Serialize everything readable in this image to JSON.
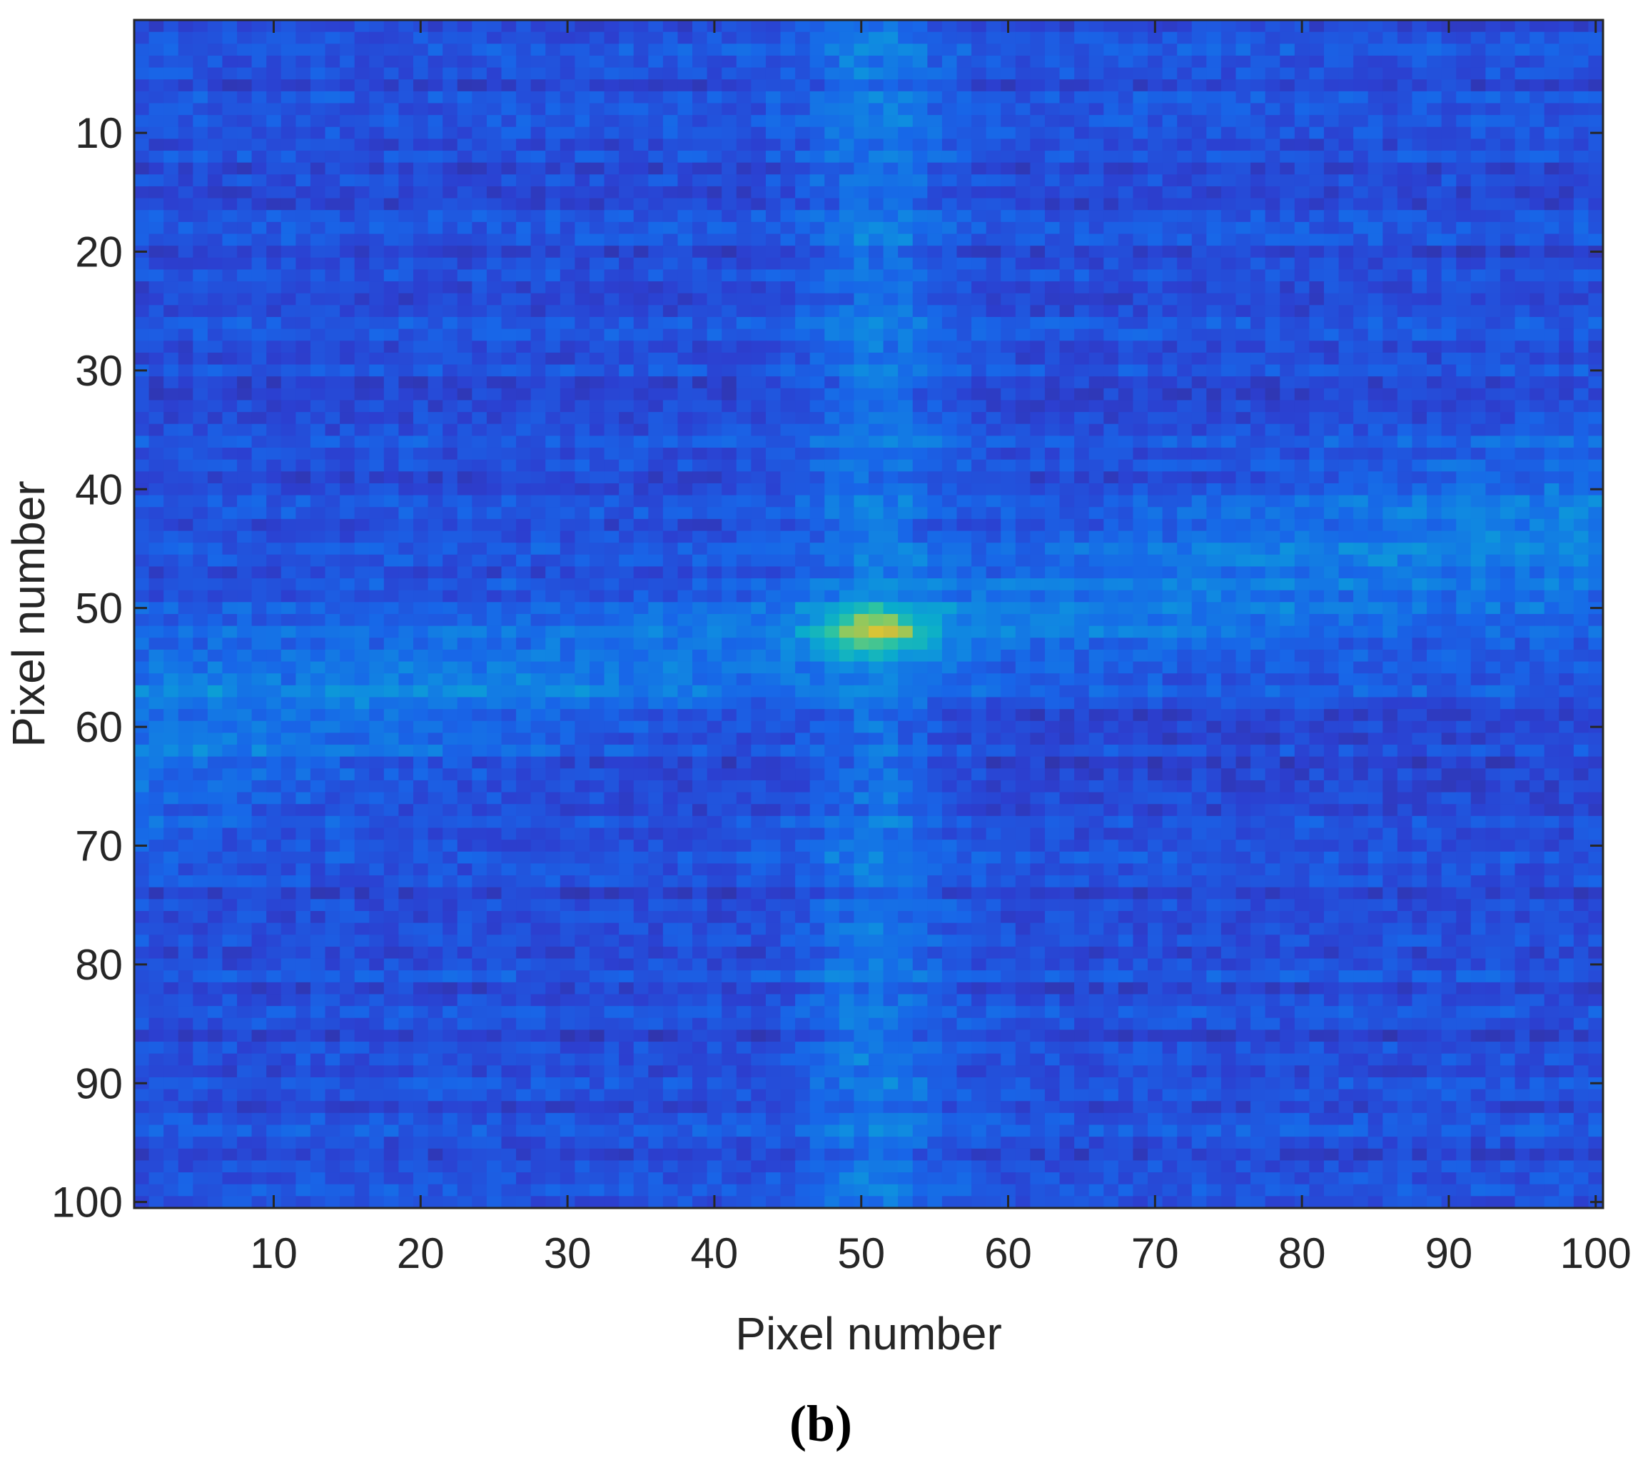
{
  "chart_data": {
    "type": "heatmap",
    "title": "",
    "xlabel": "Pixel number",
    "ylabel": "Pixel number",
    "panel_label": "(b)",
    "x_range": [
      1,
      100
    ],
    "y_range": [
      1,
      100
    ],
    "y_reversed": true,
    "x_ticks": [
      10,
      20,
      30,
      40,
      50,
      60,
      70,
      80,
      90,
      100
    ],
    "y_ticks": [
      10,
      20,
      30,
      40,
      50,
      60,
      70,
      80,
      90,
      100
    ],
    "x_tick_labels": [
      "10",
      "20",
      "30",
      "40",
      "50",
      "60",
      "70",
      "80",
      "90",
      "100"
    ],
    "y_tick_labels": [
      "10",
      "20",
      "30",
      "40",
      "50",
      "60",
      "70",
      "80",
      "90",
      "100"
    ],
    "grid": false,
    "colormap": "parula",
    "peak": {
      "x": 51,
      "y": 52
    },
    "colormap_stops": [
      "#352a87",
      "#2c3fd0",
      "#1866e8",
      "#0f8de0",
      "#0aaecb",
      "#2cc3a2",
      "#7fcb68",
      "#cdbf3c",
      "#f9d326"
    ],
    "frame_color": "#262626"
  }
}
